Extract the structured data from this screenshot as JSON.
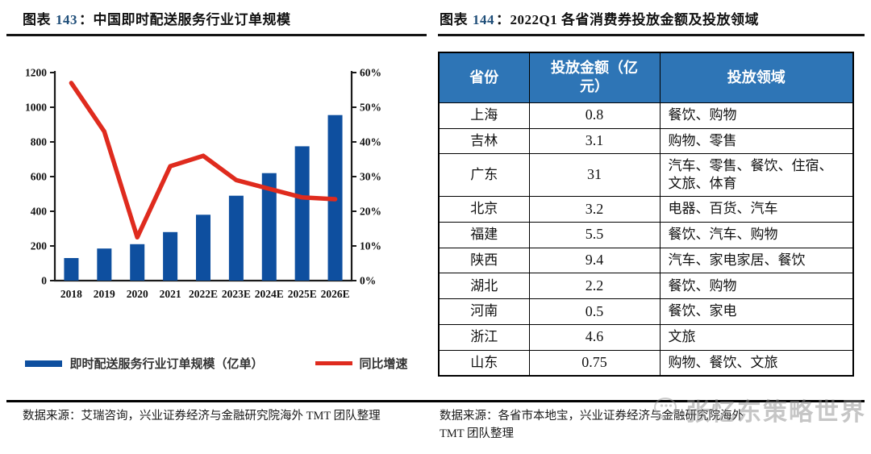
{
  "figures": {
    "left": {
      "label": "图表",
      "number": "143",
      "colon": "：",
      "title": "中国即时配送服务行业订单规模",
      "source": "数据来源：艾瑞咨询，兴业证券经济与金融研究院海外 TMT 团队整理"
    },
    "right": {
      "label": "图表",
      "number": "144",
      "colon": "：",
      "title": "2022Q1 各省消费券投放金额及投放领域",
      "source": "数据来源：各省市本地宝，兴业证券经济与金融研究院海外 TMT 团队整理"
    }
  },
  "chart_data": [
    {
      "type": "bar+line",
      "title": "中国即时配送服务行业订单规模",
      "categories": [
        "2018",
        "2019",
        "2020",
        "2021",
        "2022E",
        "2023E",
        "2024E",
        "2025E",
        "2026E"
      ],
      "series": [
        {
          "name": "即时配送服务行业订单规模（亿单）",
          "type": "bar",
          "axis": "left",
          "color": "#0E4F9F",
          "values": [
            130,
            185,
            210,
            280,
            380,
            490,
            620,
            775,
            955
          ]
        },
        {
          "name": "同比增速",
          "type": "line",
          "axis": "right",
          "color": "#DF2B1E",
          "values": [
            57,
            43,
            12.5,
            33,
            36,
            29,
            26.5,
            24,
            23.5
          ]
        }
      ],
      "left_axis": {
        "min": 0,
        "max": 1200,
        "step": 200,
        "suffix": ""
      },
      "right_axis": {
        "min": 0,
        "max": 60,
        "step": 10,
        "suffix": "%"
      },
      "grid": false,
      "legend_position": "bottom"
    },
    {
      "type": "table",
      "title": "2022Q1 各省消费券投放金额及投放领域",
      "columns": [
        "省份",
        "投放金额（亿元）",
        "投放领域"
      ],
      "rows": [
        [
          "上海",
          "0.8",
          "餐饮、购物"
        ],
        [
          "吉林",
          "3.1",
          "购物、零售"
        ],
        [
          "广东",
          "31",
          "汽车、零售、餐饮、住宿、文旅、体育"
        ],
        [
          "北京",
          "3.2",
          "电器、百货、汽车"
        ],
        [
          "福建",
          "5.5",
          "餐饮、汽车、购物"
        ],
        [
          "陕西",
          "9.4",
          "汽车、家电家居、餐饮"
        ],
        [
          "湖北",
          "2.2",
          "餐饮、购物"
        ],
        [
          "河南",
          "0.5",
          "餐饮、家电"
        ],
        [
          "浙江",
          "4.6",
          "文旅"
        ],
        [
          "山东",
          "0.75",
          "购物、餐饮、文旅"
        ]
      ]
    }
  ],
  "watermark": {
    "icon": "wechat-chat-bubble",
    "text": "张忆东策略世界"
  },
  "colors": {
    "bar": "#0E4F9F",
    "line": "#DF2B1E",
    "table_header_bg": "#2E75B6",
    "table_header_text": "#FFFFFF",
    "figure_number": "#1F4E79",
    "axis": "#1A1A1A"
  }
}
